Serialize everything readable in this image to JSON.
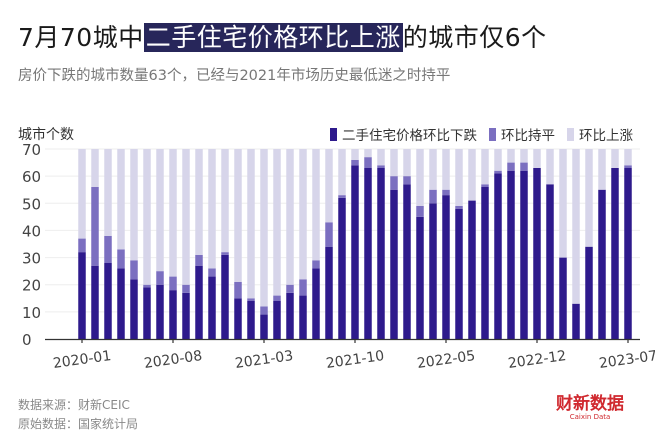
{
  "title": {
    "prefix": "7月70城中",
    "highlight": "二手住宅价格环比上涨",
    "suffix": "的城市仅6个"
  },
  "subtitle": "房价下跌的城市数量63个，已经与2021年市场历史最低迷之时持平",
  "footer": {
    "source": "数据来源：财新CEIC",
    "origin": "原始数据：国家统计局"
  },
  "logo": {
    "text": "财新数据",
    "sub": "Caixin Data"
  },
  "chart_data": {
    "type": "bar",
    "stacked": true,
    "ylabel": "城市个数",
    "ylim": [
      0,
      70
    ],
    "yticks": [
      0,
      10,
      20,
      30,
      40,
      50,
      60,
      70
    ],
    "xtick_labels": [
      "2020-01",
      "2020-08",
      "2021-03",
      "2021-10",
      "2022-05",
      "2022-12",
      "2023-07"
    ],
    "grid": true,
    "legend_position": "top-right",
    "categories": [
      "2020-01",
      "2020-02",
      "2020-03",
      "2020-04",
      "2020-05",
      "2020-06",
      "2020-07",
      "2020-08",
      "2020-09",
      "2020-10",
      "2020-11",
      "2020-12",
      "2021-01",
      "2021-02",
      "2021-03",
      "2021-04",
      "2021-05",
      "2021-06",
      "2021-07",
      "2021-08",
      "2021-09",
      "2021-10",
      "2021-11",
      "2021-12",
      "2022-01",
      "2022-02",
      "2022-03",
      "2022-04",
      "2022-05",
      "2022-06",
      "2022-07",
      "2022-08",
      "2022-09",
      "2022-10",
      "2022-11",
      "2022-12",
      "2023-01",
      "2023-02",
      "2023-03",
      "2023-04",
      "2023-05",
      "2023-06",
      "2023-07"
    ],
    "series": [
      {
        "name": "二手住宅价格环比下跌",
        "color": "#2e1a8c",
        "values": [
          32,
          27,
          28,
          26,
          22,
          19,
          20,
          18,
          17,
          27,
          23,
          31,
          15,
          14,
          9,
          14,
          17,
          16,
          26,
          34,
          52,
          64,
          63,
          63,
          55,
          57,
          45,
          50,
          53,
          48,
          51,
          56,
          61,
          62,
          62,
          63,
          57,
          30,
          13,
          34,
          55,
          63,
          63
        ]
      },
      {
        "name": "环比持平",
        "color": "#7b6fc0",
        "values": [
          5,
          29,
          10,
          7,
          7,
          1,
          5,
          5,
          3,
          4,
          3,
          1,
          6,
          1,
          3,
          2,
          3,
          6,
          3,
          9,
          1,
          2,
          4,
          1,
          5,
          3,
          4,
          5,
          2,
          1,
          0,
          1,
          1,
          3,
          3,
          0,
          0,
          0,
          0,
          0,
          0,
          0,
          1
        ]
      },
      {
        "name": "环比上涨",
        "color": "#d7d5ea",
        "values": [
          33,
          14,
          32,
          37,
          41,
          50,
          45,
          47,
          50,
          39,
          44,
          38,
          49,
          55,
          58,
          54,
          50,
          48,
          41,
          27,
          17,
          4,
          3,
          6,
          10,
          10,
          21,
          15,
          15,
          21,
          19,
          13,
          8,
          5,
          5,
          7,
          13,
          40,
          57,
          36,
          15,
          7,
          6
        ]
      }
    ]
  }
}
